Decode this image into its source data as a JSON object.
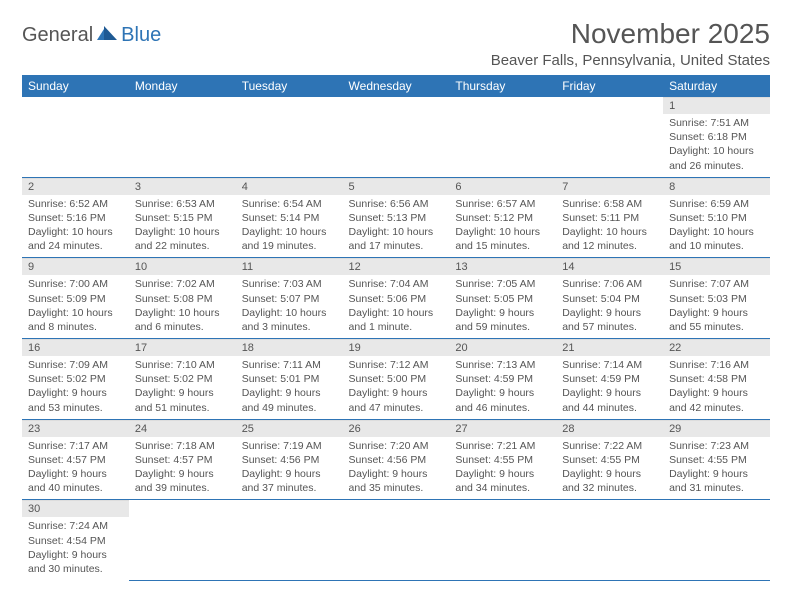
{
  "logo": {
    "general": "General",
    "blue": "Blue"
  },
  "title": "November 2025",
  "location": "Beaver Falls, Pennsylvania, United States",
  "colors": {
    "header_bg": "#2e74b5",
    "header_fg": "#ffffff",
    "daynum_bg": "#e8e8e8",
    "text": "#555555",
    "rule": "#2e74b5"
  },
  "weekdays": [
    "Sunday",
    "Monday",
    "Tuesday",
    "Wednesday",
    "Thursday",
    "Friday",
    "Saturday"
  ],
  "weeks": [
    [
      null,
      null,
      null,
      null,
      null,
      null,
      {
        "n": "1",
        "sr": "Sunrise: 7:51 AM",
        "ss": "Sunset: 6:18 PM",
        "dl": "Daylight: 10 hours and 26 minutes."
      }
    ],
    [
      {
        "n": "2",
        "sr": "Sunrise: 6:52 AM",
        "ss": "Sunset: 5:16 PM",
        "dl": "Daylight: 10 hours and 24 minutes."
      },
      {
        "n": "3",
        "sr": "Sunrise: 6:53 AM",
        "ss": "Sunset: 5:15 PM",
        "dl": "Daylight: 10 hours and 22 minutes."
      },
      {
        "n": "4",
        "sr": "Sunrise: 6:54 AM",
        "ss": "Sunset: 5:14 PM",
        "dl": "Daylight: 10 hours and 19 minutes."
      },
      {
        "n": "5",
        "sr": "Sunrise: 6:56 AM",
        "ss": "Sunset: 5:13 PM",
        "dl": "Daylight: 10 hours and 17 minutes."
      },
      {
        "n": "6",
        "sr": "Sunrise: 6:57 AM",
        "ss": "Sunset: 5:12 PM",
        "dl": "Daylight: 10 hours and 15 minutes."
      },
      {
        "n": "7",
        "sr": "Sunrise: 6:58 AM",
        "ss": "Sunset: 5:11 PM",
        "dl": "Daylight: 10 hours and 12 minutes."
      },
      {
        "n": "8",
        "sr": "Sunrise: 6:59 AM",
        "ss": "Sunset: 5:10 PM",
        "dl": "Daylight: 10 hours and 10 minutes."
      }
    ],
    [
      {
        "n": "9",
        "sr": "Sunrise: 7:00 AM",
        "ss": "Sunset: 5:09 PM",
        "dl": "Daylight: 10 hours and 8 minutes."
      },
      {
        "n": "10",
        "sr": "Sunrise: 7:02 AM",
        "ss": "Sunset: 5:08 PM",
        "dl": "Daylight: 10 hours and 6 minutes."
      },
      {
        "n": "11",
        "sr": "Sunrise: 7:03 AM",
        "ss": "Sunset: 5:07 PM",
        "dl": "Daylight: 10 hours and 3 minutes."
      },
      {
        "n": "12",
        "sr": "Sunrise: 7:04 AM",
        "ss": "Sunset: 5:06 PM",
        "dl": "Daylight: 10 hours and 1 minute."
      },
      {
        "n": "13",
        "sr": "Sunrise: 7:05 AM",
        "ss": "Sunset: 5:05 PM",
        "dl": "Daylight: 9 hours and 59 minutes."
      },
      {
        "n": "14",
        "sr": "Sunrise: 7:06 AM",
        "ss": "Sunset: 5:04 PM",
        "dl": "Daylight: 9 hours and 57 minutes."
      },
      {
        "n": "15",
        "sr": "Sunrise: 7:07 AM",
        "ss": "Sunset: 5:03 PM",
        "dl": "Daylight: 9 hours and 55 minutes."
      }
    ],
    [
      {
        "n": "16",
        "sr": "Sunrise: 7:09 AM",
        "ss": "Sunset: 5:02 PM",
        "dl": "Daylight: 9 hours and 53 minutes."
      },
      {
        "n": "17",
        "sr": "Sunrise: 7:10 AM",
        "ss": "Sunset: 5:02 PM",
        "dl": "Daylight: 9 hours and 51 minutes."
      },
      {
        "n": "18",
        "sr": "Sunrise: 7:11 AM",
        "ss": "Sunset: 5:01 PM",
        "dl": "Daylight: 9 hours and 49 minutes."
      },
      {
        "n": "19",
        "sr": "Sunrise: 7:12 AM",
        "ss": "Sunset: 5:00 PM",
        "dl": "Daylight: 9 hours and 47 minutes."
      },
      {
        "n": "20",
        "sr": "Sunrise: 7:13 AM",
        "ss": "Sunset: 4:59 PM",
        "dl": "Daylight: 9 hours and 46 minutes."
      },
      {
        "n": "21",
        "sr": "Sunrise: 7:14 AM",
        "ss": "Sunset: 4:59 PM",
        "dl": "Daylight: 9 hours and 44 minutes."
      },
      {
        "n": "22",
        "sr": "Sunrise: 7:16 AM",
        "ss": "Sunset: 4:58 PM",
        "dl": "Daylight: 9 hours and 42 minutes."
      }
    ],
    [
      {
        "n": "23",
        "sr": "Sunrise: 7:17 AM",
        "ss": "Sunset: 4:57 PM",
        "dl": "Daylight: 9 hours and 40 minutes."
      },
      {
        "n": "24",
        "sr": "Sunrise: 7:18 AM",
        "ss": "Sunset: 4:57 PM",
        "dl": "Daylight: 9 hours and 39 minutes."
      },
      {
        "n": "25",
        "sr": "Sunrise: 7:19 AM",
        "ss": "Sunset: 4:56 PM",
        "dl": "Daylight: 9 hours and 37 minutes."
      },
      {
        "n": "26",
        "sr": "Sunrise: 7:20 AM",
        "ss": "Sunset: 4:56 PM",
        "dl": "Daylight: 9 hours and 35 minutes."
      },
      {
        "n": "27",
        "sr": "Sunrise: 7:21 AM",
        "ss": "Sunset: 4:55 PM",
        "dl": "Daylight: 9 hours and 34 minutes."
      },
      {
        "n": "28",
        "sr": "Sunrise: 7:22 AM",
        "ss": "Sunset: 4:55 PM",
        "dl": "Daylight: 9 hours and 32 minutes."
      },
      {
        "n": "29",
        "sr": "Sunrise: 7:23 AM",
        "ss": "Sunset: 4:55 PM",
        "dl": "Daylight: 9 hours and 31 minutes."
      }
    ],
    [
      {
        "n": "30",
        "sr": "Sunrise: 7:24 AM",
        "ss": "Sunset: 4:54 PM",
        "dl": "Daylight: 9 hours and 30 minutes."
      },
      null,
      null,
      null,
      null,
      null,
      null
    ]
  ]
}
